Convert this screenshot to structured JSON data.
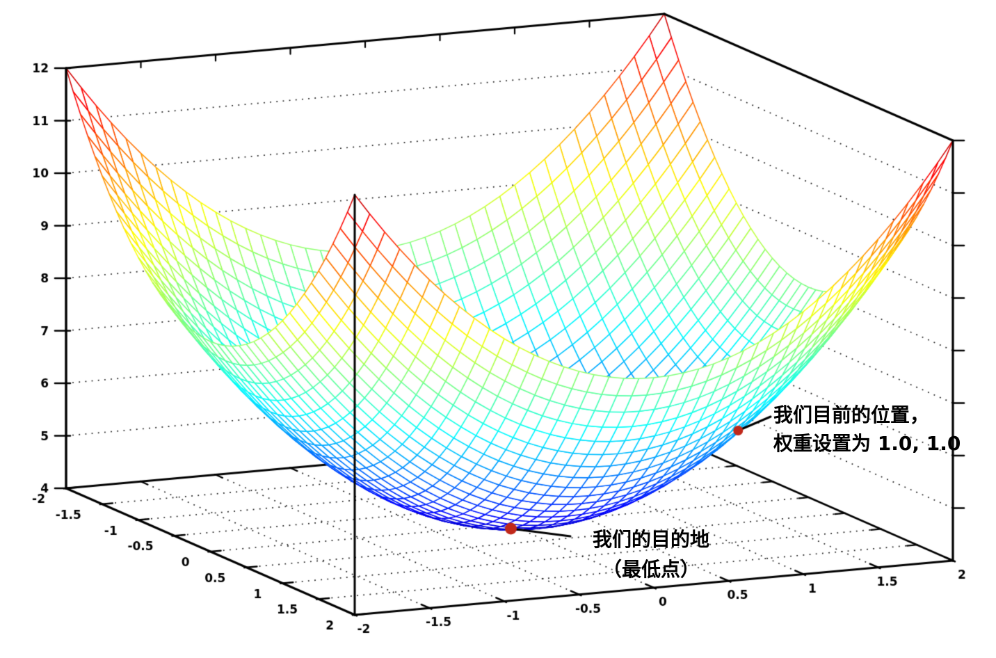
{
  "page": {
    "background": "#ffffff"
  },
  "chart_data": {
    "type": "surface",
    "description": "3D wireframe mesh (gnuplot-style) of an error surface bowl, jet colormap from blue (low) to dark red (high), hidden-line removal, dotted grid on walls and floor, box axes",
    "z_expression": "x*x + y*y + 4",
    "x_range": [
      -2,
      2
    ],
    "y_range": [
      -2,
      2
    ],
    "z_range": [
      4,
      12
    ],
    "mesh_divisions": 40,
    "colormap": "jet",
    "grid_style": "dotted",
    "grid_dot_color": "#1a1a1a",
    "edge_color": "#000000",
    "x_tick_labels": [
      "-2",
      "-1.5",
      "-1",
      "-0.5",
      "0",
      "0.5",
      "1",
      "1.5",
      "2"
    ],
    "y_tick_labels": [
      "-2",
      "-1.5",
      "-1",
      "-0.5",
      "0",
      "0.5",
      "1",
      "1.5",
      "2"
    ],
    "z_tick_labels": [
      "4",
      "5",
      "6",
      "7",
      "8",
      "9",
      "10",
      "11",
      "12"
    ],
    "marker_color": "#c0281a",
    "marked_points": [
      {
        "x": 1,
        "y": 1,
        "z": 6,
        "label": "我们目前的位置，权重设置为 1.0, 1.0"
      },
      {
        "x": 0,
        "y": 0,
        "z": 4,
        "label": "我们的目的地（最低点）"
      }
    ]
  },
  "annotations": {
    "current_position": {
      "line1": "我们目前的位置，",
      "line2": "权重设置为 1.0, 1.0"
    },
    "destination": {
      "line1": "我们的目的地",
      "line2": "（最低点）"
    }
  }
}
